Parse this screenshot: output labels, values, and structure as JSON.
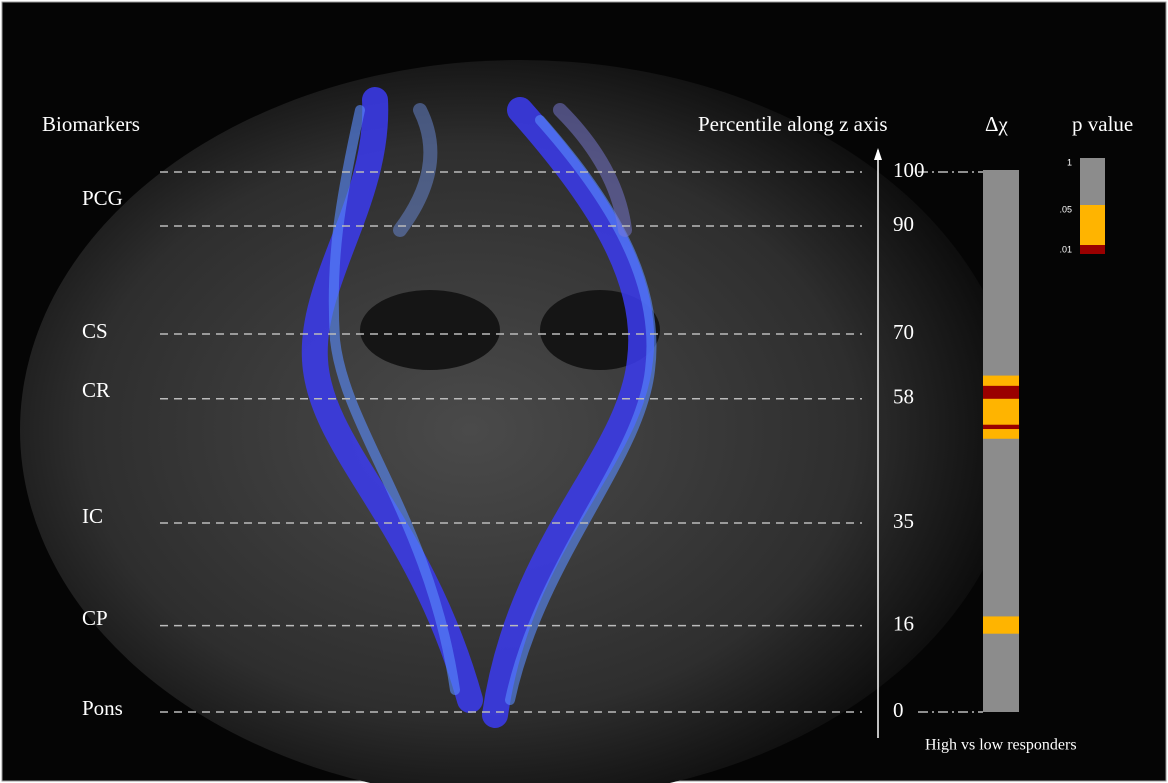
{
  "headers": {
    "biomarkers": "Biomarkers",
    "axis": "Percentile along z axis",
    "delta_chi": "Δχ",
    "p_value": "p value",
    "footer": "High vs low responders"
  },
  "biomarkers": [
    "PCG",
    "CS",
    "CR",
    "IC",
    "CP",
    "Pons"
  ],
  "percentiles": [
    "100",
    "90",
    "70",
    "58",
    "35",
    "16",
    "0"
  ],
  "delta_chi_bands": [
    {
      "from": 50.6,
      "to": 62.3,
      "color": "#ffb400"
    },
    {
      "from": 58,
      "to": 60.4,
      "color": "#9a0000"
    },
    {
      "from": 52.4,
      "to": 53.2,
      "color": "#9a0000"
    },
    {
      "from": 14.5,
      "to": 17.7,
      "color": "#ffb400"
    }
  ],
  "p_legend": {
    "labels": [
      "1",
      ".05",
      ".01"
    ],
    "colors": [
      "#8c8c8c",
      "#ffb400",
      "#9a0000"
    ]
  }
}
